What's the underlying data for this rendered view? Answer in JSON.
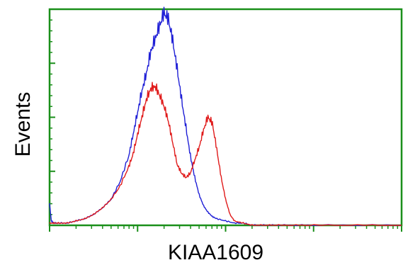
{
  "chart_data": {
    "type": "line",
    "title": "",
    "xlabel": "KIAA1609",
    "ylabel": "Events",
    "x_scale": "log",
    "xlim": [
      0,
      4
    ],
    "ylim": [
      0,
      1
    ],
    "grid": false,
    "legend": "none",
    "frame_color": "#1a8f1a",
    "series": [
      {
        "color": "#1f1fd6",
        "x": [
          0.0,
          0.02,
          0.05,
          0.1,
          0.2,
          0.3,
          0.4,
          0.5,
          0.6,
          0.7,
          0.8,
          0.9,
          0.95,
          1.0,
          1.05,
          1.1,
          1.15,
          1.2,
          1.25,
          1.3,
          1.35,
          1.4,
          1.45,
          1.5,
          1.55,
          1.6,
          1.65,
          1.7,
          1.75,
          1.8,
          1.85,
          1.9,
          2.0,
          2.1,
          2.2,
          2.3,
          2.4,
          2.5,
          2.6,
          2.8,
          3.0,
          3.5,
          4.0
        ],
        "y": [
          0.1,
          0.02,
          0.01,
          0.01,
          0.01,
          0.02,
          0.03,
          0.05,
          0.08,
          0.12,
          0.2,
          0.32,
          0.42,
          0.52,
          0.62,
          0.7,
          0.8,
          0.86,
          0.92,
          0.98,
          0.95,
          0.85,
          0.72,
          0.58,
          0.45,
          0.32,
          0.22,
          0.14,
          0.09,
          0.06,
          0.04,
          0.03,
          0.02,
          0.01,
          0.01,
          0.0,
          0.0,
          0.0,
          0.0,
          0.0,
          0.0,
          0.0,
          0.0
        ]
      },
      {
        "color": "#e01a1a",
        "x": [
          0.0,
          0.05,
          0.1,
          0.2,
          0.3,
          0.4,
          0.5,
          0.6,
          0.7,
          0.8,
          0.9,
          0.95,
          1.0,
          1.05,
          1.1,
          1.15,
          1.2,
          1.25,
          1.3,
          1.35,
          1.4,
          1.45,
          1.5,
          1.55,
          1.6,
          1.65,
          1.7,
          1.75,
          1.8,
          1.85,
          1.9,
          1.95,
          2.0,
          2.05,
          2.1,
          2.2,
          2.3,
          2.4,
          2.5,
          2.6,
          2.8,
          3.0,
          3.5,
          4.0
        ],
        "y": [
          0.01,
          0.01,
          0.01,
          0.01,
          0.02,
          0.03,
          0.05,
          0.08,
          0.12,
          0.18,
          0.27,
          0.33,
          0.42,
          0.5,
          0.58,
          0.63,
          0.64,
          0.6,
          0.55,
          0.48,
          0.38,
          0.28,
          0.24,
          0.22,
          0.24,
          0.3,
          0.36,
          0.44,
          0.5,
          0.47,
          0.35,
          0.22,
          0.12,
          0.05,
          0.02,
          0.01,
          0.0,
          0.0,
          0.0,
          0.0,
          0.0,
          0.0,
          0.0,
          0.0
        ]
      }
    ]
  }
}
